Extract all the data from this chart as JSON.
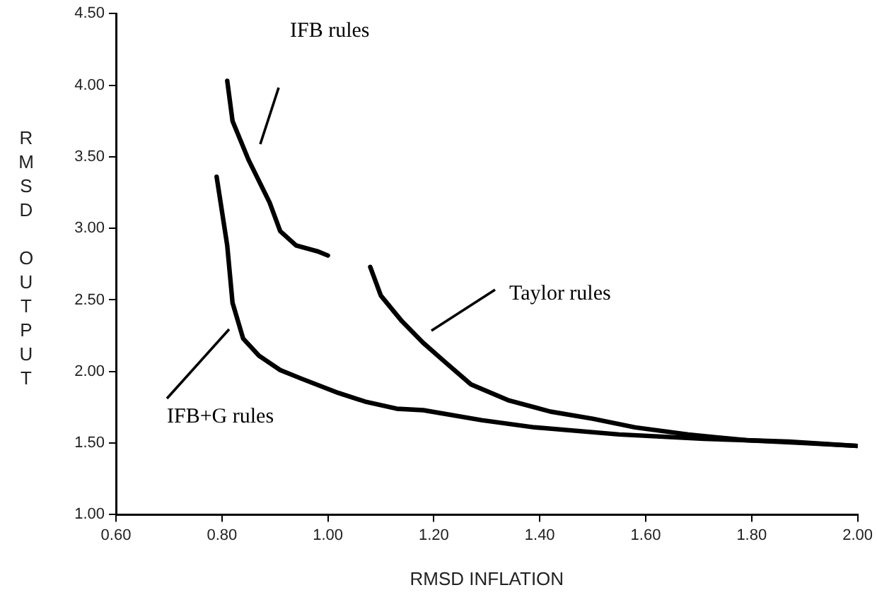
{
  "chart_data": {
    "type": "line",
    "xlabel": "RMSD INFLATION",
    "ylabel": "RMSD OUTPUT",
    "xlim": [
      0.6,
      2.0
    ],
    "ylim": [
      1.0,
      4.5
    ],
    "xticks": [
      {
        "value": 0.6,
        "label": "0.60"
      },
      {
        "value": 0.8,
        "label": "0.80"
      },
      {
        "value": 1.0,
        "label": "1.00"
      },
      {
        "value": 1.2,
        "label": "1.20"
      },
      {
        "value": 1.4,
        "label": "1.40"
      },
      {
        "value": 1.6,
        "label": "1.60"
      },
      {
        "value": 1.8,
        "label": "1.80"
      },
      {
        "value": 2.0,
        "label": "2.00"
      }
    ],
    "yticks": [
      {
        "value": 1.0,
        "label": "1.00"
      },
      {
        "value": 1.5,
        "label": "1.50"
      },
      {
        "value": 2.0,
        "label": "2.00"
      },
      {
        "value": 2.5,
        "label": "2.50"
      },
      {
        "value": 3.0,
        "label": "3.00"
      },
      {
        "value": 3.5,
        "label": "3.50"
      },
      {
        "value": 4.0,
        "label": "4.00"
      },
      {
        "value": 4.5,
        "label": "4.50"
      }
    ],
    "grid": false,
    "legend": false,
    "marker": "none",
    "line_style": "solid",
    "series": [
      {
        "color": "#000000",
        "x": [
          0.81,
          0.82,
          0.85,
          0.89,
          0.91,
          0.94,
          0.98,
          1.0
        ],
        "values": [
          4.03,
          3.75,
          3.48,
          3.18,
          2.98,
          2.88,
          2.84,
          2.81
        ]
      },
      {
        "color": "#000000",
        "x": [
          0.79,
          0.81,
          0.82,
          0.84,
          0.87,
          0.91,
          0.95,
          1.02,
          1.07,
          1.13,
          1.18,
          1.29,
          1.39,
          1.55,
          1.71,
          1.87,
          2.0
        ],
        "values": [
          3.36,
          2.88,
          2.48,
          2.23,
          2.11,
          2.01,
          1.95,
          1.85,
          1.79,
          1.74,
          1.73,
          1.66,
          1.61,
          1.56,
          1.53,
          1.51,
          1.48
        ]
      },
      {
        "color": "#000000",
        "x": [
          1.08,
          1.1,
          1.14,
          1.18,
          1.22,
          1.27,
          1.34,
          1.42,
          1.5,
          1.58,
          1.68,
          1.79,
          1.9,
          2.0
        ],
        "values": [
          2.73,
          2.53,
          2.35,
          2.2,
          2.07,
          1.91,
          1.8,
          1.72,
          1.67,
          1.61,
          1.56,
          1.52,
          1.5,
          1.48
        ]
      }
    ],
    "annotations": [
      "IFB rules",
      "Taylor rules",
      "IFB+G rules"
    ]
  }
}
